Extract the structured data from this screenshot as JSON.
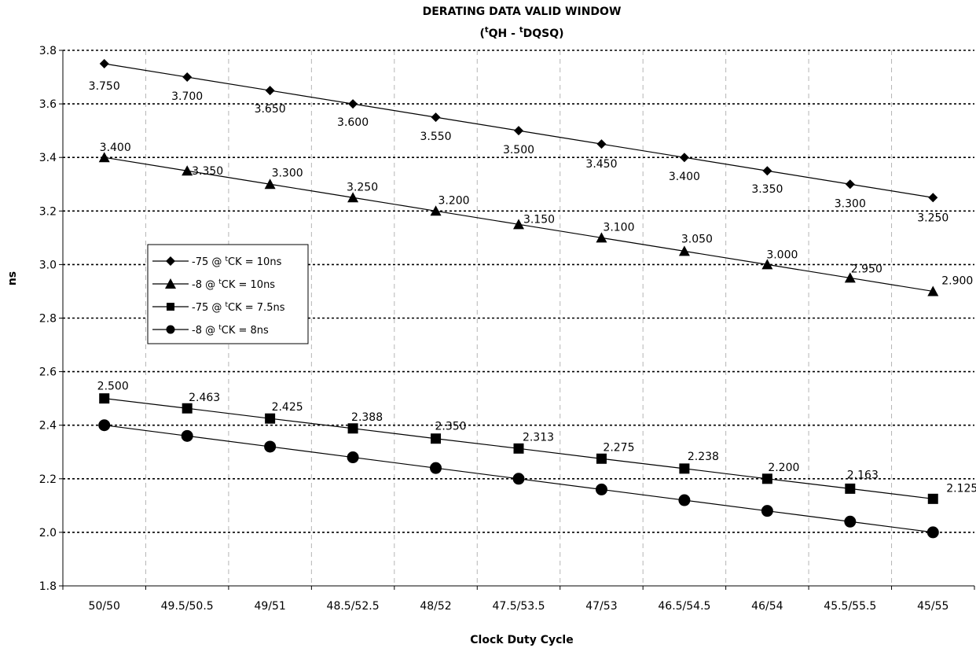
{
  "chart_data": {
    "type": "line",
    "title": "DERATING DATA VALID WINDOW",
    "subtitle": {
      "open": "(",
      "sup1": "t",
      "part1": "QH - ",
      "sup2": "t",
      "part2": "DQSQ)"
    },
    "xlabel": "Clock Duty Cycle",
    "ylabel": "ns",
    "ylim": [
      1.8,
      3.8
    ],
    "ytick_step": 0.2,
    "yticks": [
      "1.8",
      "2.0",
      "2.2",
      "2.4",
      "2.6",
      "2.8",
      "3.0",
      "3.2",
      "3.4",
      "3.6",
      "3.8"
    ],
    "categories": [
      "50/50",
      "49.5/50.5",
      "49/51",
      "48.5/52.5",
      "48/52",
      "47.5/53.5",
      "47/53",
      "46.5/54.5",
      "46/54",
      "45.5/55.5",
      "45/55"
    ],
    "grid": {
      "horizontal": true,
      "vertical": true
    },
    "legend_position": "left-middle",
    "series": [
      {
        "name": "-75 @ tCK = 10ns",
        "legend": {
          "prefix": "-75 @ ",
          "sup": "t",
          "suffix": "CK = 10ns"
        },
        "marker": "diamond",
        "values": [
          3.75,
          3.7,
          3.65,
          3.6,
          3.55,
          3.5,
          3.45,
          3.4,
          3.35,
          3.3,
          3.25
        ],
        "labels": [
          "3.750",
          "3.700",
          "3.650",
          "3.600",
          "3.550",
          "3.500",
          "3.450",
          "3.400",
          "3.350",
          "3.300",
          "3.250"
        ]
      },
      {
        "name": "-8 @ tCK = 10ns",
        "legend": {
          "prefix": "-8 @ ",
          "sup": "t",
          "suffix": "CK = 10ns"
        },
        "marker": "triangle",
        "values": [
          3.4,
          3.35,
          3.3,
          3.25,
          3.2,
          3.15,
          3.1,
          3.05,
          3.0,
          2.95,
          2.9
        ],
        "labels": [
          "3.400",
          "3.350",
          "3.300",
          "3.250",
          "3.200",
          "3.150",
          "3.100",
          "3.050",
          "3.000",
          "2.950",
          "2.900"
        ]
      },
      {
        "name": "-75 @ tCK = 7.5ns",
        "legend": {
          "prefix": "-75 @ ",
          "sup": "t",
          "suffix": "CK = 7.5ns"
        },
        "marker": "square",
        "values": [
          2.5,
          2.463,
          2.425,
          2.388,
          2.35,
          2.313,
          2.275,
          2.238,
          2.2,
          2.163,
          2.125
        ],
        "labels": [
          "2.500",
          "2.463",
          "2.425",
          "2.388",
          "2.350",
          "2.313",
          "2.275",
          "2.238",
          "2.200",
          "2.163",
          "2.125"
        ]
      },
      {
        "name": "-8 @ tCK = 8ns",
        "legend": {
          "prefix": "-8 @ ",
          "sup": "t",
          "suffix": "CK = 8ns"
        },
        "marker": "circle",
        "values": [
          2.4,
          2.36,
          2.32,
          2.28,
          2.24,
          2.2,
          2.16,
          2.12,
          2.08,
          2.04,
          2.0
        ],
        "labels": []
      }
    ],
    "colors": {
      "lines": "#000000",
      "markers": "#000000",
      "background": "#ffffff"
    }
  }
}
